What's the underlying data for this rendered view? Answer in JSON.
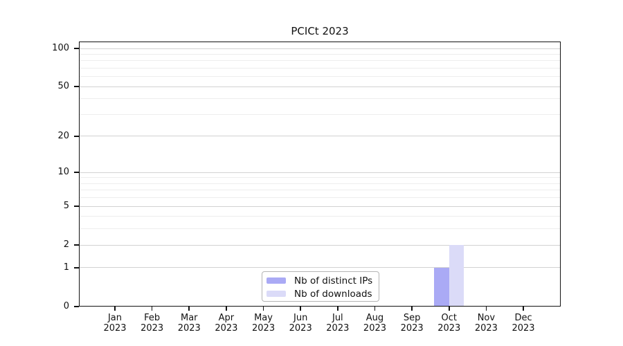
{
  "chart_data": {
    "type": "bar",
    "title": "PCICt 2023",
    "categories": [
      {
        "month": "Jan",
        "year": "2023"
      },
      {
        "month": "Feb",
        "year": "2023"
      },
      {
        "month": "Mar",
        "year": "2023"
      },
      {
        "month": "Apr",
        "year": "2023"
      },
      {
        "month": "May",
        "year": "2023"
      },
      {
        "month": "Jun",
        "year": "2023"
      },
      {
        "month": "Jul",
        "year": "2023"
      },
      {
        "month": "Aug",
        "year": "2023"
      },
      {
        "month": "Sep",
        "year": "2023"
      },
      {
        "month": "Oct",
        "year": "2023"
      },
      {
        "month": "Nov",
        "year": "2023"
      },
      {
        "month": "Dec",
        "year": "2023"
      }
    ],
    "series": [
      {
        "name": "Nb of distinct IPs",
        "color": "#aaaaf5",
        "values": [
          0,
          0,
          0,
          0,
          0,
          0,
          0,
          0,
          0,
          1,
          0,
          0
        ]
      },
      {
        "name": "Nb of downloads",
        "color": "#dbdbf8",
        "values": [
          0,
          0,
          0,
          0,
          0,
          0,
          0,
          0,
          0,
          2,
          0,
          0
        ]
      }
    ],
    "y_scale": "log1p",
    "ylim": [
      0,
      100
    ],
    "y_major_ticks": [
      0,
      1,
      2,
      5,
      10,
      20,
      50,
      100
    ],
    "y_minor_gridlines": [
      3,
      4,
      6,
      7,
      8,
      9,
      30,
      40,
      60,
      70,
      80,
      90
    ],
    "grid": "horizontal",
    "legend_position": "bottom-center"
  }
}
